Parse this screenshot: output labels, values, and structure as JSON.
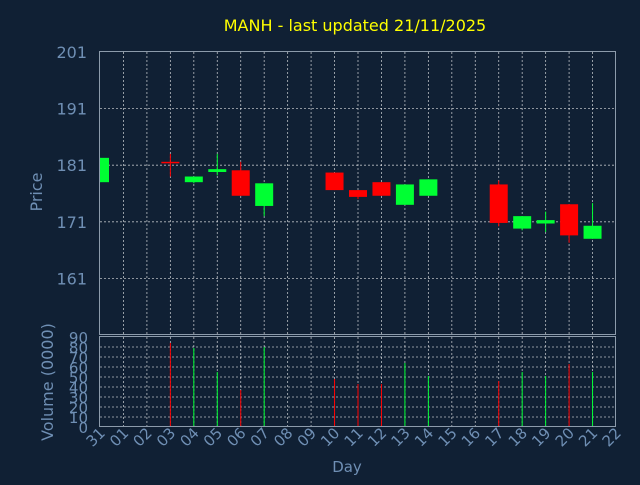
{
  "chart_data": {
    "type": "candlestick",
    "title": "MANH - last updated 21/11/2025",
    "xlabel": "Day",
    "colors": {
      "background": "#102034",
      "title": "#ffff00",
      "axis_text": "#6f8fb4",
      "up": "#00ff33",
      "down": "#ff0000",
      "grid": "#ffffff"
    },
    "x_ticks": [
      "31",
      "01",
      "02",
      "03",
      "04",
      "05",
      "06",
      "07",
      "08",
      "09",
      "10",
      "11",
      "12",
      "13",
      "14",
      "15",
      "16",
      "17",
      "18",
      "19",
      "20",
      "21",
      "22"
    ],
    "price_panel": {
      "ylabel": "Price",
      "ylim": [
        151,
        201
      ],
      "y_ticks": [
        161,
        171,
        181,
        191,
        201
      ],
      "candles": [
        {
          "day": "31",
          "open": 178.0,
          "high": 182.3,
          "low": 178.0,
          "close": 182.3
        },
        {
          "day": "03",
          "open": 181.6,
          "high": 183.0,
          "low": 179.0,
          "close": 181.4
        },
        {
          "day": "04",
          "open": 178.0,
          "high": 179.0,
          "low": 177.8,
          "close": 179.0
        },
        {
          "day": "05",
          "open": 179.8,
          "high": 183.0,
          "low": 179.2,
          "close": 180.3
        },
        {
          "day": "06",
          "open": 180.1,
          "high": 181.6,
          "low": 175.6,
          "close": 175.6
        },
        {
          "day": "07",
          "open": 173.8,
          "high": 177.8,
          "low": 172.0,
          "close": 177.8
        },
        {
          "day": "10",
          "open": 179.7,
          "high": 179.7,
          "low": 176.6,
          "close": 176.6
        },
        {
          "day": "11",
          "open": 176.6,
          "high": 176.6,
          "low": 175.0,
          "close": 175.4
        },
        {
          "day": "12",
          "open": 178.0,
          "high": 178.0,
          "low": 175.6,
          "close": 175.6
        },
        {
          "day": "13",
          "open": 174.0,
          "high": 177.6,
          "low": 174.0,
          "close": 177.6
        },
        {
          "day": "14",
          "open": 175.6,
          "high": 178.5,
          "low": 175.6,
          "close": 178.5
        },
        {
          "day": "17",
          "open": 177.6,
          "high": 178.3,
          "low": 170.2,
          "close": 170.8
        },
        {
          "day": "18",
          "open": 169.8,
          "high": 172.0,
          "low": 169.5,
          "close": 172.0
        },
        {
          "day": "19",
          "open": 170.7,
          "high": 172.8,
          "low": 169.2,
          "close": 171.3
        },
        {
          "day": "20",
          "open": 174.1,
          "high": 174.1,
          "low": 167.3,
          "close": 168.6
        },
        {
          "day": "21",
          "open": 168.0,
          "high": 174.3,
          "low": 168.0,
          "close": 170.3
        }
      ]
    },
    "volume_panel": {
      "ylabel": "Volume (0000)",
      "ylim": [
        0,
        90
      ],
      "y_ticks": [
        0,
        10,
        20,
        30,
        40,
        50,
        60,
        70,
        80,
        90
      ],
      "bars": [
        {
          "day": "03",
          "value": 84,
          "dir": "down"
        },
        {
          "day": "04",
          "value": 79,
          "dir": "up"
        },
        {
          "day": "05",
          "value": 55,
          "dir": "up"
        },
        {
          "day": "06",
          "value": 37,
          "dir": "down"
        },
        {
          "day": "07",
          "value": 80,
          "dir": "up"
        },
        {
          "day": "10",
          "value": 48,
          "dir": "down"
        },
        {
          "day": "11",
          "value": 43,
          "dir": "down"
        },
        {
          "day": "12",
          "value": 43,
          "dir": "down"
        },
        {
          "day": "13",
          "value": 64,
          "dir": "up"
        },
        {
          "day": "14",
          "value": 51,
          "dir": "up"
        },
        {
          "day": "17",
          "value": 46,
          "dir": "down"
        },
        {
          "day": "18",
          "value": 55,
          "dir": "up"
        },
        {
          "day": "19",
          "value": 51,
          "dir": "up"
        },
        {
          "day": "20",
          "value": 63,
          "dir": "down"
        },
        {
          "day": "21",
          "value": 55,
          "dir": "up"
        }
      ]
    }
  }
}
